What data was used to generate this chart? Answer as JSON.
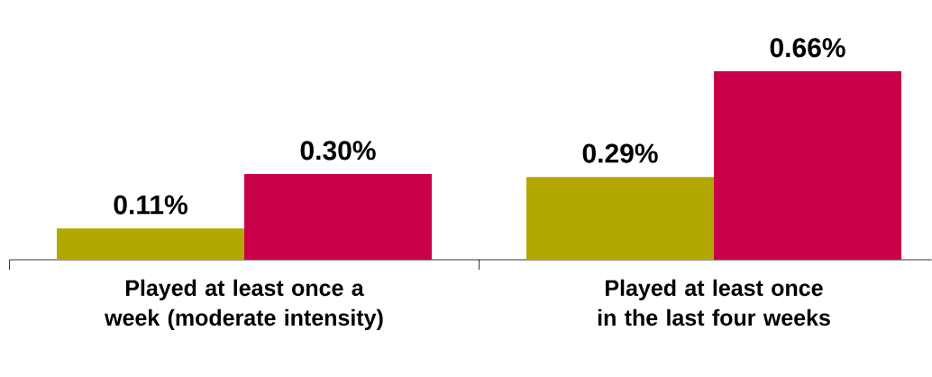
{
  "chart_data": {
    "type": "bar",
    "categories": [
      "Played at least once a week (moderate intensity)",
      "Played at least once in the last four weeks"
    ],
    "series": [
      {
        "color": "#b3a800",
        "values": [
          0.11,
          0.29
        ],
        "value_labels": [
          "0.11%",
          "0.29%"
        ]
      },
      {
        "color": "#c8004a",
        "values": [
          0.3,
          0.66
        ],
        "value_labels": [
          "0.30%",
          "0.66%"
        ]
      }
    ]
  }
}
